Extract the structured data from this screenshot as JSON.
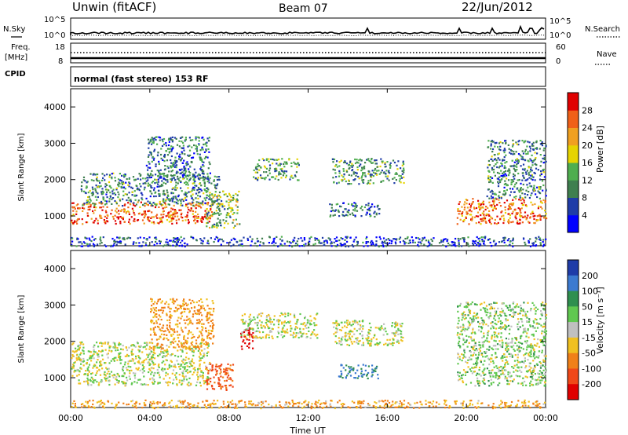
{
  "header": {
    "station": "Unwin (fitACF)",
    "beam": "Beam 07",
    "date": "22/Jun/2012"
  },
  "left_labels": {
    "nsky": "N.Sky",
    "freq": "Freq.",
    "freq_unit": "[MHz]",
    "cpid": "CPID",
    "freq_ticks": [
      "18",
      "8"
    ],
    "noise_ticks": [
      "10^5",
      "10^0"
    ]
  },
  "right_labels": {
    "nsearch": "N.Search",
    "nave": "Nave",
    "nave_ticks": [
      "60",
      "0"
    ],
    "noise_ticks": [
      "10^5",
      "10^0"
    ]
  },
  "cpid_text": "normal (fast stereo) 153 RF",
  "panels": {
    "ylabel": "Slant Range [km]",
    "xlabel": "Time UT",
    "ylim": [
      180,
      4500
    ],
    "yticks": [
      "4000",
      "3000",
      "2000",
      "1000"
    ],
    "xticks": [
      "00:00",
      "04:00",
      "08:00",
      "12:00",
      "16:00",
      "20:00",
      "00:00"
    ]
  },
  "colorbars": {
    "power": {
      "label": "Power [dB]",
      "ticks": [
        "28",
        "24",
        "20",
        "16",
        "12",
        "8",
        "4"
      ],
      "colors": [
        "#0000ff",
        "#1f3ca8",
        "#3f7f4f",
        "#4fae4f",
        "#e6d400",
        "#f0a020",
        "#f06018",
        "#e00000"
      ]
    },
    "velocity": {
      "label": "Velocity [m s⁻¹]",
      "ticks": [
        "200",
        "100",
        "50",
        "15",
        "-15",
        "-50",
        "-100",
        "-200"
      ],
      "colors": [
        "#1f3ca8",
        "#3c7ad0",
        "#2f8f4f",
        "#60c850",
        "#c0c0c0",
        "#f0c020",
        "#f08018",
        "#f04818",
        "#e00000"
      ]
    }
  },
  "chart_data": {
    "type": "heatmap",
    "title": "Unwin (fitACF) Beam 07 22/Jun/2012",
    "xlabel": "Time UT",
    "ylabel": "Slant Range [km]",
    "x_range_hours": [
      0,
      24
    ],
    "ylim": [
      180,
      4500
    ],
    "panels": [
      {
        "name": "Power",
        "units": "dB",
        "color_range": [
          0,
          32
        ],
        "echo_regions": [
          {
            "t_start": 0.0,
            "t_end": 7.2,
            "range_start": 800,
            "range_end": 1400,
            "value": 26
          },
          {
            "t_start": 0.5,
            "t_end": 7.5,
            "range_start": 1300,
            "range_end": 2200,
            "value": 10
          },
          {
            "t_start": 3.8,
            "t_end": 7.0,
            "range_start": 2000,
            "range_end": 3200,
            "value": 9
          },
          {
            "t_start": 6.8,
            "t_end": 8.5,
            "range_start": 700,
            "range_end": 1700,
            "value": 14
          },
          {
            "t_start": 9.2,
            "t_end": 11.5,
            "range_start": 2000,
            "range_end": 2600,
            "value": 12
          },
          {
            "t_start": 13.2,
            "t_end": 16.8,
            "range_start": 1900,
            "range_end": 2600,
            "value": 11
          },
          {
            "t_start": 13.0,
            "t_end": 15.6,
            "range_start": 1000,
            "range_end": 1400,
            "value": 8
          },
          {
            "t_start": 19.5,
            "t_end": 24.0,
            "range_start": 800,
            "range_end": 1500,
            "value": 25
          },
          {
            "t_start": 21.0,
            "t_end": 24.0,
            "range_start": 1500,
            "range_end": 3100,
            "value": 10
          },
          {
            "t_start": 0.0,
            "t_end": 24.0,
            "range_start": 180,
            "range_end": 450,
            "value": 6
          }
        ]
      },
      {
        "name": "Velocity",
        "units": "m s^-1",
        "color_range": [
          -250,
          250
        ],
        "echo_regions": [
          {
            "t_start": 0.0,
            "t_end": 7.0,
            "range_start": 800,
            "range_end": 2000,
            "value": 0
          },
          {
            "t_start": 4.0,
            "t_end": 7.2,
            "range_start": 1800,
            "range_end": 3200,
            "value": -40
          },
          {
            "t_start": 6.8,
            "t_end": 8.2,
            "range_start": 600,
            "range_end": 1400,
            "value": -90
          },
          {
            "t_start": 8.5,
            "t_end": 9.2,
            "range_start": 1800,
            "range_end": 2400,
            "value": -220
          },
          {
            "t_start": 8.5,
            "t_end": 12.5,
            "range_start": 2100,
            "range_end": 2800,
            "value": 0
          },
          {
            "t_start": 13.2,
            "t_end": 16.8,
            "range_start": 1900,
            "range_end": 2600,
            "value": 0
          },
          {
            "t_start": 13.5,
            "t_end": 15.5,
            "range_start": 1000,
            "range_end": 1400,
            "value": 80
          },
          {
            "t_start": 19.5,
            "t_end": 24.0,
            "range_start": 800,
            "range_end": 3100,
            "value": 10
          },
          {
            "t_start": 0.0,
            "t_end": 24.0,
            "range_start": 180,
            "range_end": 400,
            "value": -30
          }
        ]
      }
    ]
  }
}
